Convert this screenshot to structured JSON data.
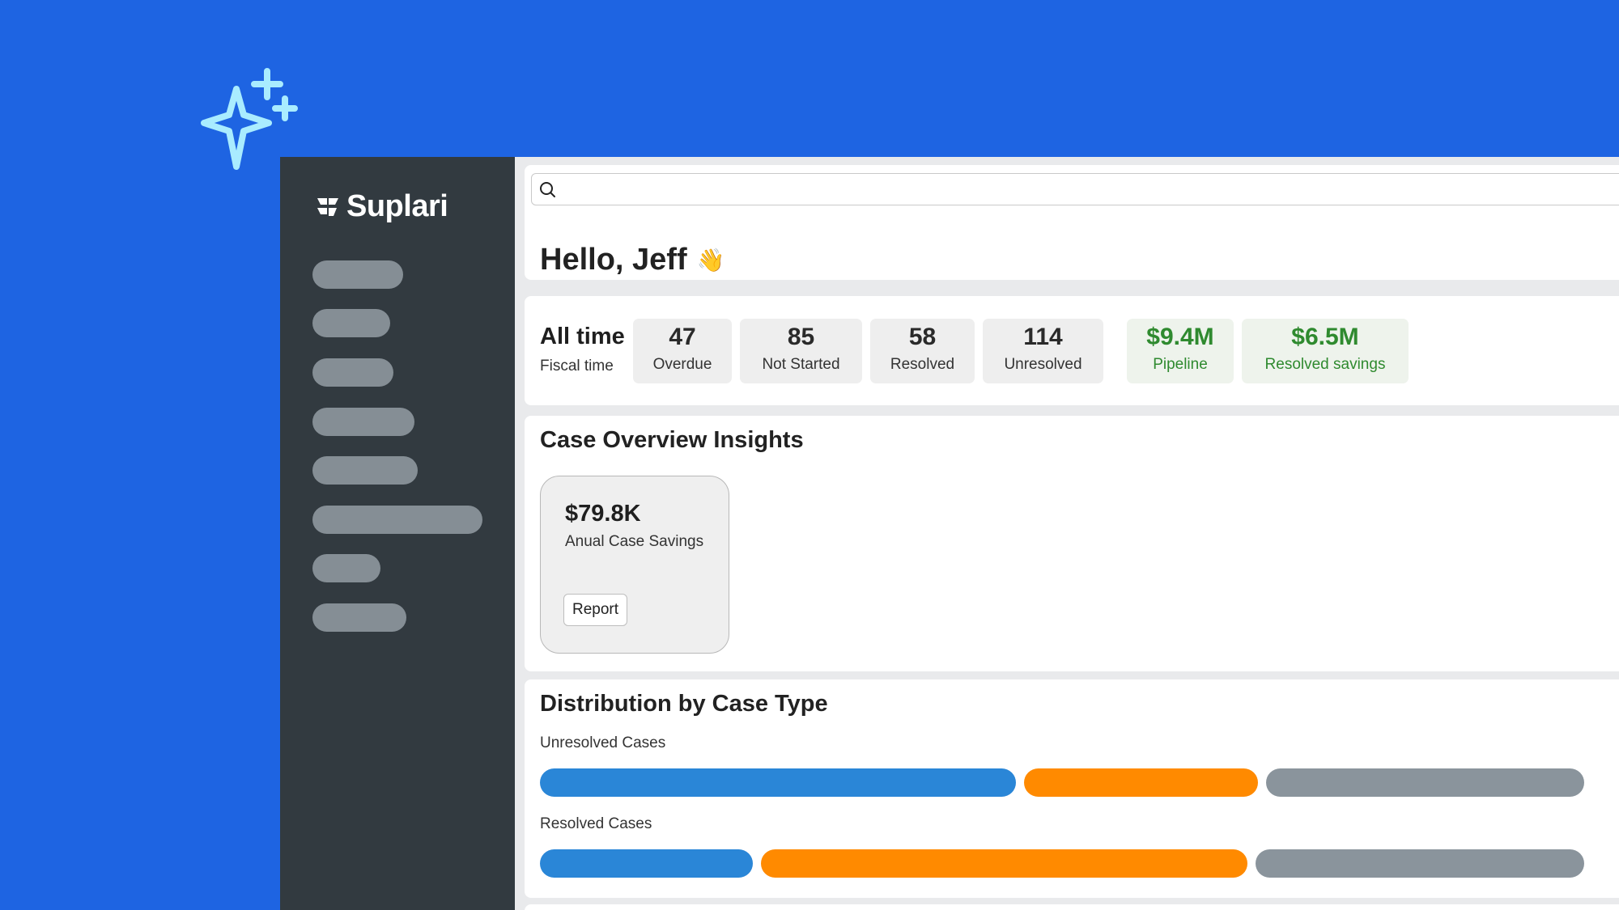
{
  "brand": {
    "name": "Suplari",
    "logo_icon": "suplari-logo-icon",
    "decoration_icon": "sparkle-icon"
  },
  "colors": {
    "background": "#1e64e2",
    "sidebar": "#323a40",
    "nav_placeholder": "#858e95",
    "bar_blue": "#2a86d7",
    "bar_orange": "#ff8a00",
    "bar_gray": "#8a949c",
    "positive_green": "#2f8a2f"
  },
  "sidebar": {
    "nav_item_count": 8
  },
  "search": {
    "placeholder": "",
    "icon": "search-icon"
  },
  "greeting": {
    "text": "Hello, Jeff",
    "emoji": "👋"
  },
  "summary": {
    "title": "All time",
    "subtitle": "Fiscal time",
    "stats": [
      {
        "value": "47",
        "label": "Overdue"
      },
      {
        "value": "85",
        "label": "Not Started"
      },
      {
        "value": "58",
        "label": "Resolved"
      },
      {
        "value": "114",
        "label": "Unresolved"
      }
    ],
    "financials": [
      {
        "value": "$9.4M",
        "label": "Pipeline"
      },
      {
        "value": "$6.5M",
        "label": "Resolved savings"
      }
    ]
  },
  "insights": {
    "title": "Case Overview Insights",
    "card": {
      "value": "$79.8K",
      "label": "Anual Case Savings",
      "button": "Report"
    }
  },
  "distribution": {
    "title": "Distribution by Case Type",
    "rows": [
      {
        "label": "Unresolved Cases",
        "segments": [
          {
            "color": "blue",
            "share": 0.46
          },
          {
            "color": "orange",
            "share": 0.23
          },
          {
            "color": "gray",
            "share": 0.31
          }
        ]
      },
      {
        "label": "Resolved Cases",
        "segments": [
          {
            "color": "blue",
            "share": 0.21
          },
          {
            "color": "orange",
            "share": 0.47
          },
          {
            "color": "gray",
            "share": 0.32
          }
        ]
      }
    ]
  }
}
